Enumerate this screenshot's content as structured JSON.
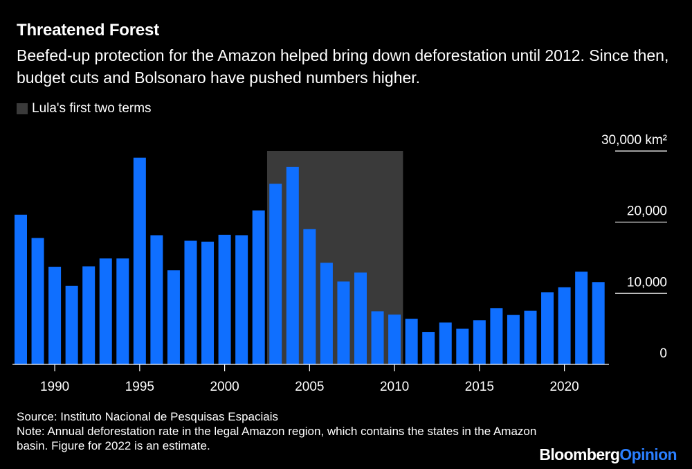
{
  "title": "Threatened Forest",
  "subtitle": "Beefed-up protection for the Amazon helped bring down deforestation until 2012. Since then, budget cuts and Bolsonaro have pushed numbers higher.",
  "legend": {
    "label": "Lula's first two terms",
    "color": "#3a3a3a"
  },
  "source": "Source: Instituto Nacional de Pesquisas Espaciais",
  "note": "Note: Annual deforestation rate in the legal Amazon region, which contains the states in the Amazon basin. Figure for 2022 is an estimate.",
  "logo": {
    "part1": "Bloomberg",
    "part2": "Opinion"
  },
  "colors": {
    "bar": "#0f6fff",
    "shade": "#3a3a3a",
    "background": "#000000",
    "text": "#ffffff"
  },
  "chart_data": {
    "type": "bar",
    "x": [
      1988,
      1989,
      1990,
      1991,
      1992,
      1993,
      1994,
      1995,
      1996,
      1997,
      1998,
      1999,
      2000,
      2001,
      2002,
      2003,
      2004,
      2005,
      2006,
      2007,
      2008,
      2009,
      2010,
      2011,
      2012,
      2013,
      2014,
      2015,
      2016,
      2017,
      2018,
      2019,
      2020,
      2021,
      2022
    ],
    "values": [
      21050,
      17770,
      13730,
      11030,
      13786,
      14896,
      14896,
      29059,
      18161,
      13227,
      17383,
      17259,
      18226,
      18165,
      21651,
      25396,
      27772,
      19014,
      14286,
      11651,
      12911,
      7464,
      7000,
      6418,
      4571,
      5891,
      5012,
      6207,
      7893,
      6947,
      7536,
      10129,
      10851,
      13038,
      11568
    ],
    "ylim": [
      0,
      30000
    ],
    "yticks": [
      0,
      10000,
      20000,
      30000
    ],
    "ytick_labels": [
      "0",
      "10,000",
      "20,000",
      "30,000 km²"
    ],
    "xticks": [
      1990,
      1995,
      2000,
      2005,
      2010,
      2015,
      2020
    ],
    "xtick_labels": [
      "1990",
      "1995",
      "2000",
      "2005",
      "2010",
      "2015",
      "2020"
    ],
    "shaded_range": [
      2003,
      2010
    ],
    "grid": false,
    "legend_position": "top-left"
  }
}
